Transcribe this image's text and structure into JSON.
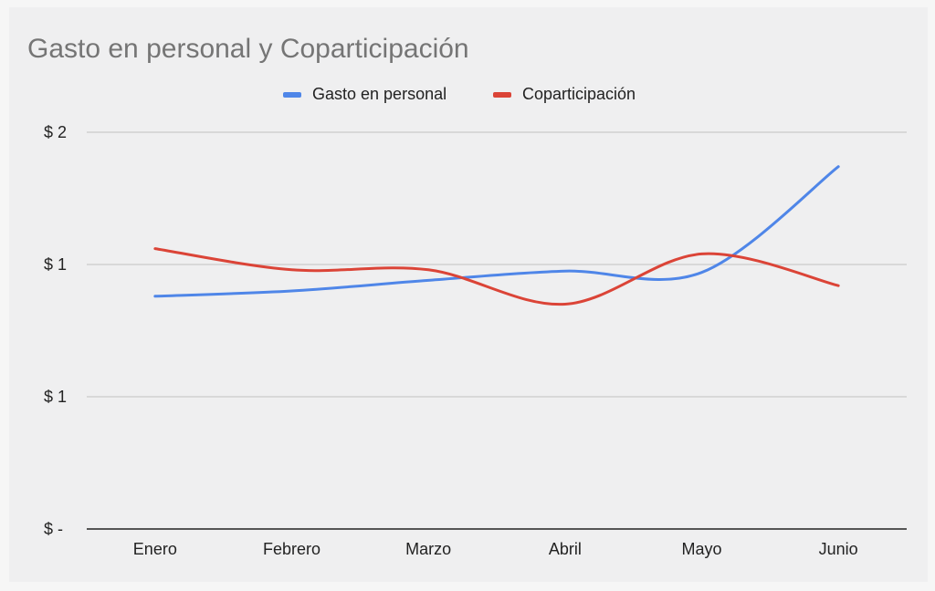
{
  "chart_data": {
    "type": "line",
    "title": "Gasto en personal y Coparticipación",
    "categories": [
      "Enero",
      "Febrero",
      "Marzo",
      "Abril",
      "Mayo",
      "Junio"
    ],
    "y_tick_labels": [
      "$ -",
      "$ 1",
      "$ 1",
      "$ 2"
    ],
    "y_tick_values": [
      0,
      0.5,
      1.0,
      1.5
    ],
    "ylim": [
      0,
      1.5
    ],
    "grid": true,
    "legend_position": "top-center",
    "curve": "smooth",
    "series": [
      {
        "name": "Gasto en personal",
        "color": "#4f86e8",
        "values": [
          0.88,
          0.9,
          0.94,
          0.975,
          0.97,
          1.37
        ]
      },
      {
        "name": "Coparticipación",
        "color": "#db4437",
        "values": [
          1.06,
          0.98,
          0.98,
          0.85,
          1.04,
          0.92
        ]
      }
    ],
    "axis_color": "#555555",
    "grid_color": "#d0d0d0"
  }
}
